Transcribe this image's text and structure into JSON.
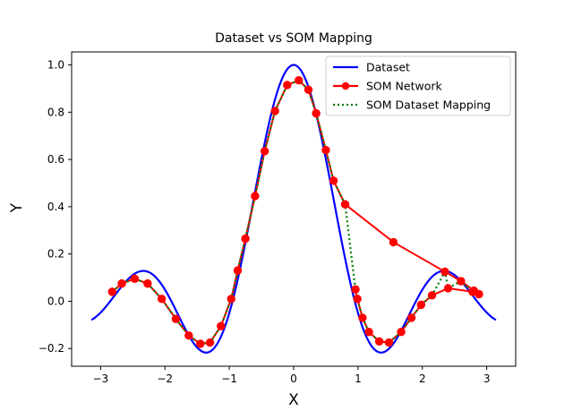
{
  "chart_data": {
    "type": "line",
    "title": "Dataset vs SOM Mapping",
    "xlabel": "X",
    "ylabel": "Y",
    "xlim": [
      -3.45,
      3.45
    ],
    "ylim": [
      -0.275,
      1.055
    ],
    "x_ticks": [
      -3,
      -2,
      -1,
      0,
      1,
      2,
      3
    ],
    "y_ticks": [
      -0.2,
      0.0,
      0.2,
      0.4,
      0.6,
      0.8,
      1.0
    ],
    "grid": false,
    "legend_position": "top-right",
    "series": [
      {
        "name": "Dataset",
        "color": "#0000ff",
        "style": "solid",
        "function": "sinc",
        "x_range": [
          -3.1416,
          3.1416
        ]
      },
      {
        "name": "SOM Network",
        "color": "#ff0000",
        "style": "solid-markers",
        "points": [
          [
            -2.82,
            0.04
          ],
          [
            -2.67,
            0.075
          ],
          [
            -2.47,
            0.095
          ],
          [
            -2.27,
            0.075
          ],
          [
            -2.05,
            0.01
          ],
          [
            -1.83,
            -0.075
          ],
          [
            -1.63,
            -0.145
          ],
          [
            -1.45,
            -0.18
          ],
          [
            -1.3,
            -0.175
          ],
          [
            -1.13,
            -0.105
          ],
          [
            -0.97,
            0.01
          ],
          [
            -0.87,
            0.13
          ],
          [
            -0.75,
            0.265
          ],
          [
            -0.6,
            0.445
          ],
          [
            -0.45,
            0.635
          ],
          [
            -0.29,
            0.805
          ],
          [
            -0.1,
            0.915
          ],
          [
            0.08,
            0.935
          ],
          [
            0.23,
            0.895
          ],
          [
            0.35,
            0.795
          ],
          [
            0.5,
            0.64
          ],
          [
            0.62,
            0.51
          ],
          [
            0.8,
            0.41
          ],
          [
            1.55,
            0.25
          ],
          [
            2.35,
            0.125
          ],
          [
            2.6,
            0.085
          ],
          [
            2.8,
            0.045
          ],
          [
            2.88,
            0.03
          ],
          [
            2.78,
            0.04
          ],
          [
            2.4,
            0.055
          ],
          [
            2.15,
            0.025
          ],
          [
            1.98,
            -0.015
          ],
          [
            1.83,
            -0.07
          ],
          [
            1.67,
            -0.13
          ],
          [
            1.48,
            -0.175
          ],
          [
            1.33,
            -0.17
          ],
          [
            1.17,
            -0.13
          ],
          [
            1.07,
            -0.07
          ],
          [
            0.99,
            0.01
          ],
          [
            0.96,
            0.05
          ]
        ]
      },
      {
        "name": "SOM Dataset Mapping",
        "color": "#008000",
        "style": "dotted",
        "points": [
          [
            -2.82,
            0.04
          ],
          [
            -2.67,
            0.075
          ],
          [
            -2.47,
            0.095
          ],
          [
            -2.27,
            0.075
          ],
          [
            -2.05,
            0.01
          ],
          [
            -1.83,
            -0.075
          ],
          [
            -1.63,
            -0.145
          ],
          [
            -1.45,
            -0.18
          ],
          [
            -1.3,
            -0.175
          ],
          [
            -1.13,
            -0.105
          ],
          [
            -0.97,
            0.01
          ],
          [
            -0.87,
            0.13
          ],
          [
            -0.75,
            0.265
          ],
          [
            -0.6,
            0.445
          ],
          [
            -0.45,
            0.635
          ],
          [
            -0.29,
            0.805
          ],
          [
            -0.1,
            0.915
          ],
          [
            0.08,
            0.935
          ],
          [
            0.23,
            0.895
          ],
          [
            0.35,
            0.795
          ],
          [
            0.5,
            0.64
          ],
          [
            0.62,
            0.51
          ],
          [
            0.8,
            0.41
          ],
          [
            0.96,
            0.05
          ],
          [
            0.99,
            0.01
          ],
          [
            1.07,
            -0.07
          ],
          [
            1.17,
            -0.13
          ],
          [
            1.33,
            -0.17
          ],
          [
            1.48,
            -0.175
          ],
          [
            1.67,
            -0.13
          ],
          [
            1.83,
            -0.07
          ],
          [
            1.98,
            -0.015
          ],
          [
            2.15,
            0.025
          ],
          [
            2.35,
            0.125
          ],
          [
            2.4,
            0.055
          ],
          [
            2.6,
            0.085
          ],
          [
            2.78,
            0.04
          ],
          [
            2.8,
            0.045
          ],
          [
            2.88,
            0.03
          ]
        ]
      }
    ]
  }
}
